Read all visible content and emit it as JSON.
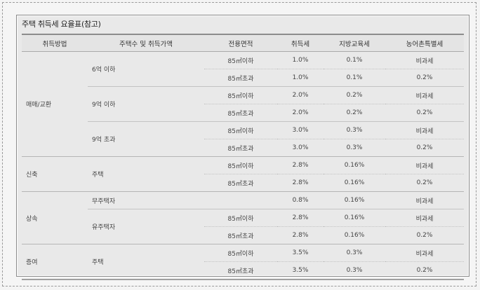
{
  "title": "주택 취득세 요율표(참고)",
  "headers": [
    "취득방법",
    "주택수 및 취득가액",
    "전용면적",
    "취득세",
    "지방교육세",
    "농어촌특별세"
  ],
  "groups": [
    {
      "method": "매매/교환",
      "subs": [
        {
          "label": "6억 이하",
          "rows": [
            {
              "area": "85㎡이하",
              "acq": "1.0%",
              "edu": "0.1%",
              "farm": "비과세"
            },
            {
              "area": "85㎡초과",
              "acq": "1.0%",
              "edu": "0.1%",
              "farm": "0.2%"
            }
          ]
        },
        {
          "label": "9억 이하",
          "rows": [
            {
              "area": "85㎡이하",
              "acq": "2.0%",
              "edu": "0.2%",
              "farm": "비과세"
            },
            {
              "area": "85㎡초과",
              "acq": "2.0%",
              "edu": "0.2%",
              "farm": "0.2%"
            }
          ]
        },
        {
          "label": "9억 초과",
          "rows": [
            {
              "area": "85㎡이하",
              "acq": "3.0%",
              "edu": "0.3%",
              "farm": "비과세"
            },
            {
              "area": "85㎡초과",
              "acq": "3.0%",
              "edu": "0.3%",
              "farm": "0.2%"
            }
          ]
        }
      ]
    },
    {
      "method": "신축",
      "subs": [
        {
          "label": "주택",
          "rows": [
            {
              "area": "85㎡이하",
              "acq": "2.8%",
              "edu": "0.16%",
              "farm": "비과세"
            },
            {
              "area": "85㎡초과",
              "acq": "2.8%",
              "edu": "0.16%",
              "farm": "0.2%"
            }
          ]
        }
      ]
    },
    {
      "method": "상속",
      "subs": [
        {
          "label": "무주택자",
          "rows": [
            {
              "area": "",
              "acq": "0.8%",
              "edu": "0.16%",
              "farm": "비과세"
            }
          ]
        },
        {
          "label": "유주택자",
          "rows": [
            {
              "area": "85㎡이하",
              "acq": "2.8%",
              "edu": "0.16%",
              "farm": "비과세"
            },
            {
              "area": "85㎡초과",
              "acq": "2.8%",
              "edu": "0.16%",
              "farm": "0.2%"
            }
          ]
        }
      ]
    },
    {
      "method": "증여",
      "subs": [
        {
          "label": "주택",
          "rows": [
            {
              "area": "85㎡이하",
              "acq": "3.5%",
              "edu": "0.3%",
              "farm": "비과세"
            },
            {
              "area": "85㎡초과",
              "acq": "3.5%",
              "edu": "0.3%",
              "farm": "0.2%"
            }
          ]
        }
      ]
    }
  ]
}
